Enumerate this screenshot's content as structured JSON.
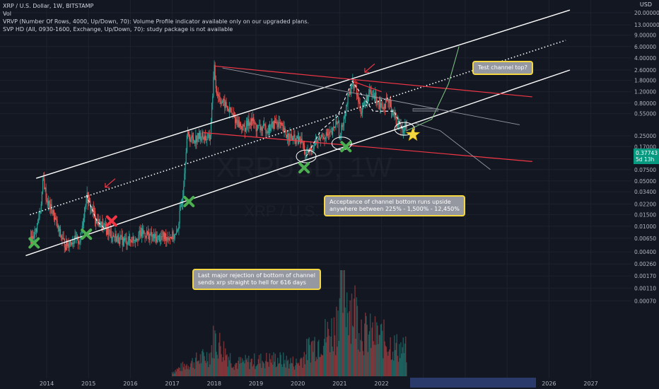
{
  "header": {
    "symbol_line": "XRP / U.S. Dollar, 1W, BITSTAMP",
    "indicator_vol": "Vol",
    "indicator_vrvp": "VRVP (Number Of Rows, 4000, Up/Down, 70): Volume Profile indicator available only on our upgraded plans.",
    "indicator_svp": "SVP HD (All, 0930-1600, Exchange, Up/Down, 70): study package is not available"
  },
  "watermark": {
    "line1": "XRPUSD, 1W",
    "line2": "XRP / U.S. Dollar"
  },
  "y_axis_unit": "USD",
  "last_price": {
    "value": "0.37743",
    "countdown": "5d 13h"
  },
  "annotations": {
    "top_callout": "Test channel top?",
    "middle_callout_line1": "Acceptance of channel bottom runs upside",
    "middle_callout_line2": "anywhere between 225% - 1,500% - 12,450%",
    "bottom_callout_line1": "Last major rejection of bottom of channel",
    "bottom_callout_line2": "sends xrp straight to hell for 616 days"
  },
  "colors": {
    "background": "#131722",
    "up": "#26a69a",
    "down": "#ef5350",
    "channel": "#ffffff",
    "red_line": "#f23645",
    "green_marker": "#4caf50",
    "red_marker": "#f23645",
    "star": "#f5d742",
    "last_price": "#089981"
  },
  "chart_data": {
    "type": "candlestick",
    "scale": "log",
    "x_ticks": [
      "2014",
      "2015",
      "2016",
      "2017",
      "2018",
      "2019",
      "2020",
      "2021",
      "2022",
      "2023",
      "2024",
      "2025",
      "2026",
      "2027"
    ],
    "y_ticks": [
      "20.00000",
      "13.00000",
      "9.00000",
      "6.00000",
      "4.00000",
      "2.60000",
      "1.80000",
      "1.20000",
      "0.80000",
      "0.55000",
      "0.37743",
      "0.25000",
      "0.17000",
      "0.11000",
      "0.07500",
      "0.05000",
      "0.03400",
      "0.02200",
      "0.01500",
      "0.01000",
      "0.00650",
      "0.00400",
      "0.00260",
      "0.00170",
      "0.00110",
      "0.00070"
    ],
    "y_tick_values": [
      20,
      13,
      9,
      6,
      4,
      2.6,
      1.8,
      1.2,
      0.8,
      0.55,
      0.25,
      0.17,
      0.11,
      0.075,
      0.05,
      0.034,
      0.022,
      0.015,
      0.01,
      0.0065,
      0.004,
      0.0026,
      0.0017,
      0.0011,
      0.0007
    ],
    "price_path": [
      [
        2013.6,
        0.0055
      ],
      [
        2013.75,
        0.009
      ],
      [
        2013.85,
        0.018
      ],
      [
        2013.92,
        0.055
      ],
      [
        2014.0,
        0.025
      ],
      [
        2014.15,
        0.016
      ],
      [
        2014.3,
        0.008
      ],
      [
        2014.45,
        0.005
      ],
      [
        2014.6,
        0.006
      ],
      [
        2014.8,
        0.006
      ],
      [
        2014.95,
        0.03
      ],
      [
        2015.05,
        0.02
      ],
      [
        2015.2,
        0.012
      ],
      [
        2015.4,
        0.009
      ],
      [
        2015.6,
        0.007
      ],
      [
        2015.8,
        0.006
      ],
      [
        2016.0,
        0.006
      ],
      [
        2016.3,
        0.008
      ],
      [
        2016.6,
        0.0065
      ],
      [
        2016.9,
        0.007
      ],
      [
        2017.1,
        0.007
      ],
      [
        2017.25,
        0.03
      ],
      [
        2017.35,
        0.25
      ],
      [
        2017.5,
        0.22
      ],
      [
        2017.7,
        0.25
      ],
      [
        2017.9,
        0.22
      ],
      [
        2018.0,
        2.8
      ],
      [
        2018.05,
        1.3
      ],
      [
        2018.15,
        0.9
      ],
      [
        2018.3,
        0.7
      ],
      [
        2018.5,
        0.45
      ],
      [
        2018.7,
        0.32
      ],
      [
        2018.9,
        0.45
      ],
      [
        2019.0,
        0.33
      ],
      [
        2019.3,
        0.32
      ],
      [
        2019.5,
        0.42
      ],
      [
        2019.7,
        0.27
      ],
      [
        2019.9,
        0.22
      ],
      [
        2020.1,
        0.2
      ],
      [
        2020.2,
        0.12
      ],
      [
        2020.4,
        0.19
      ],
      [
        2020.6,
        0.25
      ],
      [
        2020.8,
        0.26
      ],
      [
        2020.95,
        0.45
      ],
      [
        2021.0,
        0.22
      ],
      [
        2021.1,
        0.5
      ],
      [
        2021.3,
        1.7
      ],
      [
        2021.4,
        1.2
      ],
      [
        2021.5,
        0.6
      ],
      [
        2021.7,
        1.1
      ],
      [
        2021.85,
        1.0
      ],
      [
        2022.0,
        0.75
      ],
      [
        2022.2,
        0.8
      ],
      [
        2022.35,
        0.42
      ],
      [
        2022.5,
        0.33
      ],
      [
        2022.6,
        0.37
      ]
    ],
    "volume_path": [
      [
        2017.0,
        0.05
      ],
      [
        2017.4,
        0.15
      ],
      [
        2017.9,
        0.25
      ],
      [
        2018.0,
        0.45
      ],
      [
        2018.5,
        0.15
      ],
      [
        2019.0,
        0.18
      ],
      [
        2019.5,
        0.2
      ],
      [
        2020.0,
        0.15
      ],
      [
        2020.3,
        0.35
      ],
      [
        2020.9,
        0.55
      ],
      [
        2021.0,
        1.0
      ],
      [
        2021.3,
        0.85
      ],
      [
        2021.6,
        0.5
      ],
      [
        2022.0,
        0.45
      ],
      [
        2022.3,
        0.35
      ],
      [
        2022.6,
        0.3
      ]
    ],
    "volume_max": 100,
    "channel_upper": [
      [
        2013.75,
        0.055
      ],
      [
        2026.5,
        22.0
      ]
    ],
    "channel_lower": [
      [
        2013.5,
        0.0035
      ],
      [
        2026.5,
        2.6
      ]
    ],
    "channel_mid": [
      [
        2013.6,
        0.015
      ],
      [
        2026.4,
        7.5
      ]
    ],
    "red_upper": [
      [
        2018.0,
        3.0
      ],
      [
        2025.6,
        1.0
      ]
    ],
    "red_lower": [
      [
        2017.75,
        0.28
      ],
      [
        2025.6,
        0.1
      ]
    ],
    "red_short": [
      [
        2021.3,
        1.75
      ],
      [
        2022.0,
        1.2
      ]
    ],
    "grey_diag": [
      [
        2018.2,
        2.8
      ],
      [
        2025.3,
        0.37
      ]
    ],
    "dashed_paths": [
      [
        [
          2014.95,
          0.03
        ],
        [
          2015.2,
          0.012
        ],
        [
          2015.4,
          0.009
        ]
      ],
      [
        [
          2020.2,
          0.12
        ],
        [
          2020.55,
          0.3
        ],
        [
          2020.95,
          0.5
        ],
        [
          2021.3,
          1.75
        ],
        [
          2021.8,
          0.6
        ],
        [
          2022.3,
          0.6
        ],
        [
          2022.5,
          0.32
        ]
      ]
    ],
    "projection_path": [
      [
        2022.6,
        0.3
      ],
      [
        2023.2,
        0.45
      ],
      [
        2023.6,
        1.6
      ],
      [
        2023.85,
        6.0
      ]
    ],
    "grey_projection": [
      [
        2022.8,
        0.39
      ],
      [
        2023.4,
        0.3
      ],
      [
        2024.6,
        0.075
      ]
    ],
    "gray_box": [
      [
        2022.75,
        0.6
      ],
      [
        2023.35,
        0.66
      ]
    ],
    "green_markers": [
      [
        2013.7,
        0.0055
      ],
      [
        2014.95,
        0.0075
      ],
      [
        2017.4,
        0.024
      ],
      [
        2020.15,
        0.08
      ],
      [
        2021.15,
        0.17
      ]
    ],
    "red_markers": [
      [
        2015.55,
        0.012
      ]
    ],
    "star": [
      2022.75,
      0.26
    ],
    "circles": [
      [
        2020.2,
        0.12
      ],
      [
        2021.05,
        0.19
      ],
      [
        2022.55,
        0.32
      ]
    ],
    "red_arrows": [
      [
        2015.4,
        0.04
      ],
      [
        2021.6,
        2.4
      ]
    ]
  }
}
